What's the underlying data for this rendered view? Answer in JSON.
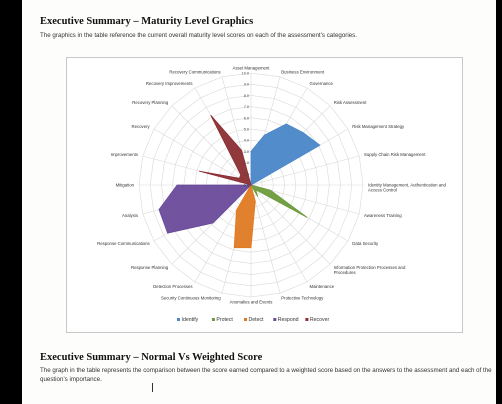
{
  "section1": {
    "heading": "Executive Summary – Maturity Level Graphics",
    "description": "The graphics in the table reference the current overall maturity level scores on each of the assessment’s categories."
  },
  "section2": {
    "heading": "Executive Summary – Normal Vs Weighted Score",
    "description": "The graph in the table represents the comparison between the score earned compared to a weighted score based on the answers to the assessment and each of the question’s importance."
  },
  "chart_data": {
    "type": "radar",
    "title": "",
    "rmax": 10,
    "ticks": [
      "0.0",
      "1.0",
      "2.0",
      "3.0",
      "4.0",
      "5.0",
      "6.0",
      "7.0",
      "8.0",
      "9.0",
      "10.0"
    ],
    "categories": [
      "Asset Management",
      "Business Environment",
      "Governance",
      "Risk Assessment",
      "Risk Management Strategy",
      "Supply Chain Risk Management",
      "Identity Management, Authentication and Access Control",
      "Awareness Training",
      "Data Security",
      "Information Protection Processes and Procedures",
      "Maintenance",
      "Protective Technology",
      "Anomalies and Events",
      "Security Continuous Monitoring",
      "Detection Processes",
      "Response Planning",
      "Response Communications",
      "Analysis",
      "Mitigation",
      "Improvements",
      "Recovery",
      "Recovery Planning",
      "Recovery Improvements",
      "Recovery Communications"
    ],
    "series": [
      {
        "name": "Identify",
        "color": "#4a86c8",
        "values": [
          3.0,
          4.6,
          6.3,
          6.6,
          7.1,
          0,
          0,
          0,
          0,
          0,
          0,
          0,
          0,
          0,
          0,
          0,
          0,
          0,
          0,
          0,
          0,
          0,
          0,
          0
        ]
      },
      {
        "name": "Protect",
        "color": "#6d9b3c",
        "values": [
          0,
          0,
          0,
          0,
          0,
          0,
          0,
          1.8,
          5.8,
          0.6,
          1.2,
          0,
          0,
          0,
          0,
          0,
          0,
          0,
          0,
          0,
          0,
          0,
          0,
          0
        ]
      },
      {
        "name": "Detect",
        "color": "#e07a22",
        "values": [
          0,
          0,
          0,
          0,
          0,
          0,
          0,
          0,
          0,
          0,
          0,
          1.5,
          5.6,
          5.8,
          2.6,
          0,
          0,
          0,
          0,
          0,
          0,
          0,
          0,
          0
        ]
      },
      {
        "name": "Respond",
        "color": "#6a4a9a",
        "values": [
          0,
          0,
          0,
          0,
          0,
          0,
          0,
          0,
          0,
          0,
          0,
          0,
          0,
          0,
          0,
          4.8,
          8.6,
          8.5,
          6.6,
          0,
          0,
          0,
          0,
          0
        ]
      },
      {
        "name": "Recover",
        "color": "#8c2e33",
        "values": [
          0,
          0,
          0,
          0,
          0,
          0,
          0,
          0,
          0,
          0,
          0,
          0,
          0,
          0,
          0,
          0,
          0,
          0,
          0,
          4.8,
          1.2,
          1.3,
          7.2,
          3.2
        ]
      }
    ],
    "legend_position": "bottom"
  }
}
